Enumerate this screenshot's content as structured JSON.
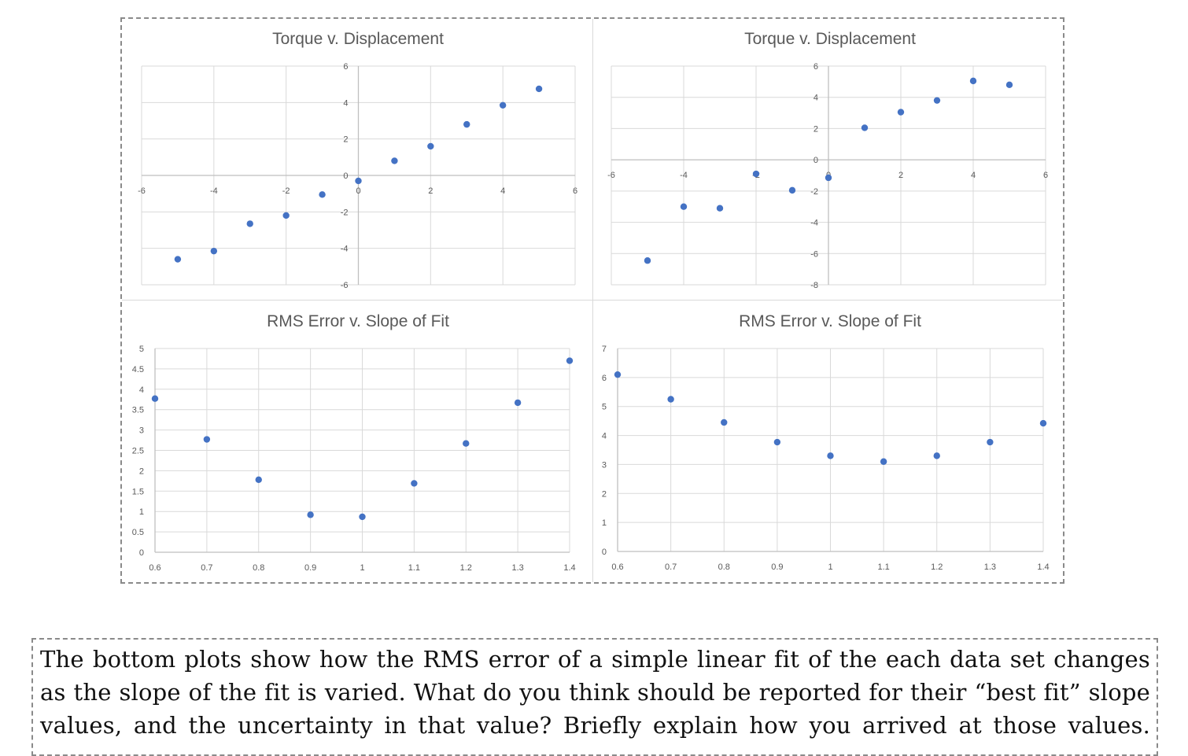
{
  "colors": {
    "marker": "#4472c4",
    "grid": "#d9d9d9",
    "axis": "#bfbfbf",
    "tick_text": "#595959"
  },
  "chart_data": [
    {
      "type": "scatter",
      "title": "Torque v. Displacement",
      "xlim": [
        -6,
        6
      ],
      "ylim": [
        -6,
        6
      ],
      "x_ticks": [
        -6,
        -4,
        -2,
        0,
        2,
        4,
        6
      ],
      "y_ticks": [
        -6,
        -4,
        -2,
        0,
        2,
        4,
        6
      ],
      "x_tick_labels": [
        "-6",
        "-4",
        "-2",
        "0",
        "2",
        "4",
        "6"
      ],
      "y_tick_labels": [
        "-6",
        "-4",
        "-2",
        "0",
        "2",
        "4",
        "6"
      ],
      "grid": true,
      "axes_cross_at_zero": true,
      "points": [
        {
          "x": -5,
          "y": -4.6
        },
        {
          "x": -4,
          "y": -4.15
        },
        {
          "x": -3,
          "y": -2.65
        },
        {
          "x": -2,
          "y": -2.2
        },
        {
          "x": -1,
          "y": -1.05
        },
        {
          "x": 0,
          "y": -0.3
        },
        {
          "x": 1,
          "y": 0.8
        },
        {
          "x": 2,
          "y": 1.6
        },
        {
          "x": 3,
          "y": 2.8
        },
        {
          "x": 4,
          "y": 3.85
        },
        {
          "x": 5,
          "y": 4.75
        }
      ]
    },
    {
      "type": "scatter",
      "title": "Torque  v. Displacement",
      "xlim": [
        -6,
        6
      ],
      "ylim": [
        -8,
        6
      ],
      "x_ticks": [
        -6,
        -4,
        -2,
        0,
        2,
        4,
        6
      ],
      "y_ticks": [
        -8,
        -6,
        -4,
        -2,
        0,
        2,
        4,
        6
      ],
      "x_tick_labels": [
        "-6",
        "-4",
        "-2",
        "0",
        "2",
        "4",
        "6"
      ],
      "y_tick_labels": [
        "-8",
        "-6",
        "-4",
        "-2",
        "0",
        "2",
        "4",
        "6"
      ],
      "grid": true,
      "axes_cross_at_zero": true,
      "points": [
        {
          "x": -5,
          "y": -6.45
        },
        {
          "x": -4,
          "y": -3.0
        },
        {
          "x": -3,
          "y": -3.1
        },
        {
          "x": -2,
          "y": -0.9
        },
        {
          "x": -1,
          "y": -1.95
        },
        {
          "x": 0,
          "y": -1.15
        },
        {
          "x": 1,
          "y": 2.05
        },
        {
          "x": 2,
          "y": 3.05
        },
        {
          "x": 3,
          "y": 3.8
        },
        {
          "x": 4,
          "y": 5.05
        },
        {
          "x": 5,
          "y": 4.8
        }
      ]
    },
    {
      "type": "scatter",
      "title": "RMS Error v. Slope of Fit",
      "xlim": [
        0.6,
        1.4
      ],
      "ylim": [
        0,
        5
      ],
      "x_ticks": [
        0.6,
        0.7,
        0.8,
        0.9,
        1.0,
        1.1,
        1.2,
        1.3,
        1.4
      ],
      "y_ticks": [
        0,
        0.5,
        1,
        1.5,
        2,
        2.5,
        3,
        3.5,
        4,
        4.5,
        5
      ],
      "x_tick_labels": [
        "0.6",
        "0.7",
        "0.8",
        "0.9",
        "1",
        "1.1",
        "1.2",
        "1.3",
        "1.4"
      ],
      "y_tick_labels": [
        "0",
        "0.5",
        "1",
        "1.5",
        "2",
        "2.5",
        "3",
        "3.5",
        "4",
        "4.5",
        "5"
      ],
      "grid": true,
      "points": [
        {
          "x": 0.6,
          "y": 3.77
        },
        {
          "x": 0.7,
          "y": 2.77
        },
        {
          "x": 0.8,
          "y": 1.78
        },
        {
          "x": 0.9,
          "y": 0.92
        },
        {
          "x": 1.0,
          "y": 0.87
        },
        {
          "x": 1.1,
          "y": 1.69
        },
        {
          "x": 1.2,
          "y": 2.67
        },
        {
          "x": 1.3,
          "y": 3.67
        },
        {
          "x": 1.4,
          "y": 4.7
        }
      ]
    },
    {
      "type": "scatter",
      "title": "RMS Error v. Slope of Fit",
      "xlim": [
        0.6,
        1.4
      ],
      "ylim": [
        0,
        7
      ],
      "x_ticks": [
        0.6,
        0.7,
        0.8,
        0.9,
        1.0,
        1.1,
        1.2,
        1.3,
        1.4
      ],
      "y_ticks": [
        0,
        1,
        2,
        3,
        4,
        5,
        6,
        7
      ],
      "x_tick_labels": [
        "0.6",
        "0.7",
        "0.8",
        "0.9",
        "1",
        "1.1",
        "1.2",
        "1.3",
        "1.4"
      ],
      "y_tick_labels": [
        "0",
        "1",
        "2",
        "3",
        "4",
        "5",
        "6",
        "7"
      ],
      "grid": true,
      "points": [
        {
          "x": 0.6,
          "y": 6.1
        },
        {
          "x": 0.7,
          "y": 5.25
        },
        {
          "x": 0.8,
          "y": 4.45
        },
        {
          "x": 0.9,
          "y": 3.77
        },
        {
          "x": 1.0,
          "y": 3.3
        },
        {
          "x": 1.1,
          "y": 3.1
        },
        {
          "x": 1.2,
          "y": 3.3
        },
        {
          "x": 1.3,
          "y": 3.77
        },
        {
          "x": 1.4,
          "y": 4.42
        }
      ]
    }
  ],
  "question": "The bottom plots show how the RMS error of a simple linear fit of the each data set changes as the slope of the fit is varied. What do you think should be reported for their “best fit” slope values, and the uncertainty in that value? Briefly explain how you arrived at those values."
}
